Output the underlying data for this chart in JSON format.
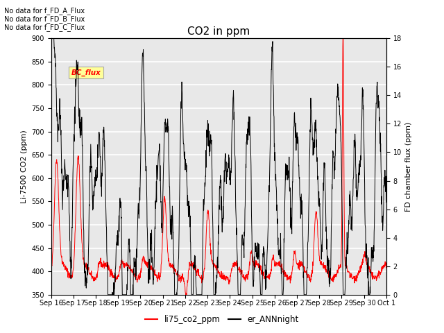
{
  "title": "CO2 in ppm",
  "ylabel_left": "Li-7500 CO2 (ppm)",
  "ylabel_right": "FD chamber flux (ppm)",
  "ylim_left": [
    350,
    900
  ],
  "ylim_right": [
    0,
    18
  ],
  "yticks_left": [
    350,
    400,
    450,
    500,
    550,
    600,
    650,
    700,
    750,
    800,
    850,
    900
  ],
  "yticks_right": [
    0,
    2,
    4,
    6,
    8,
    10,
    12,
    14,
    16,
    18
  ],
  "xtick_labels": [
    "Sep 16",
    "Sep 17",
    "Sep 18",
    "Sep 19",
    "Sep 20",
    "Sep 21",
    "Sep 22",
    "Sep 23",
    "Sep 24",
    "Sep 25",
    "Sep 26",
    "Sep 27",
    "Sep 28",
    "Sep 29",
    "Sep 30",
    "Oct 1"
  ],
  "legend_labels": [
    "li75_co2_ppm",
    "er_ANNnight"
  ],
  "legend_colors": [
    "red",
    "black"
  ],
  "no_data_texts": [
    "No data for f_FD_A_Flux",
    "No data for f_FD_B_Flux",
    "No data for f_FD_C_Flux"
  ],
  "bc_flux_box_text": "BC_flux",
  "bc_flux_box_color": "#ffff99",
  "bc_flux_text_color": "red",
  "plot_background": "#e8e8e8",
  "grid_color": "white",
  "title_fontsize": 11,
  "axis_fontsize": 8,
  "tick_fontsize": 7
}
